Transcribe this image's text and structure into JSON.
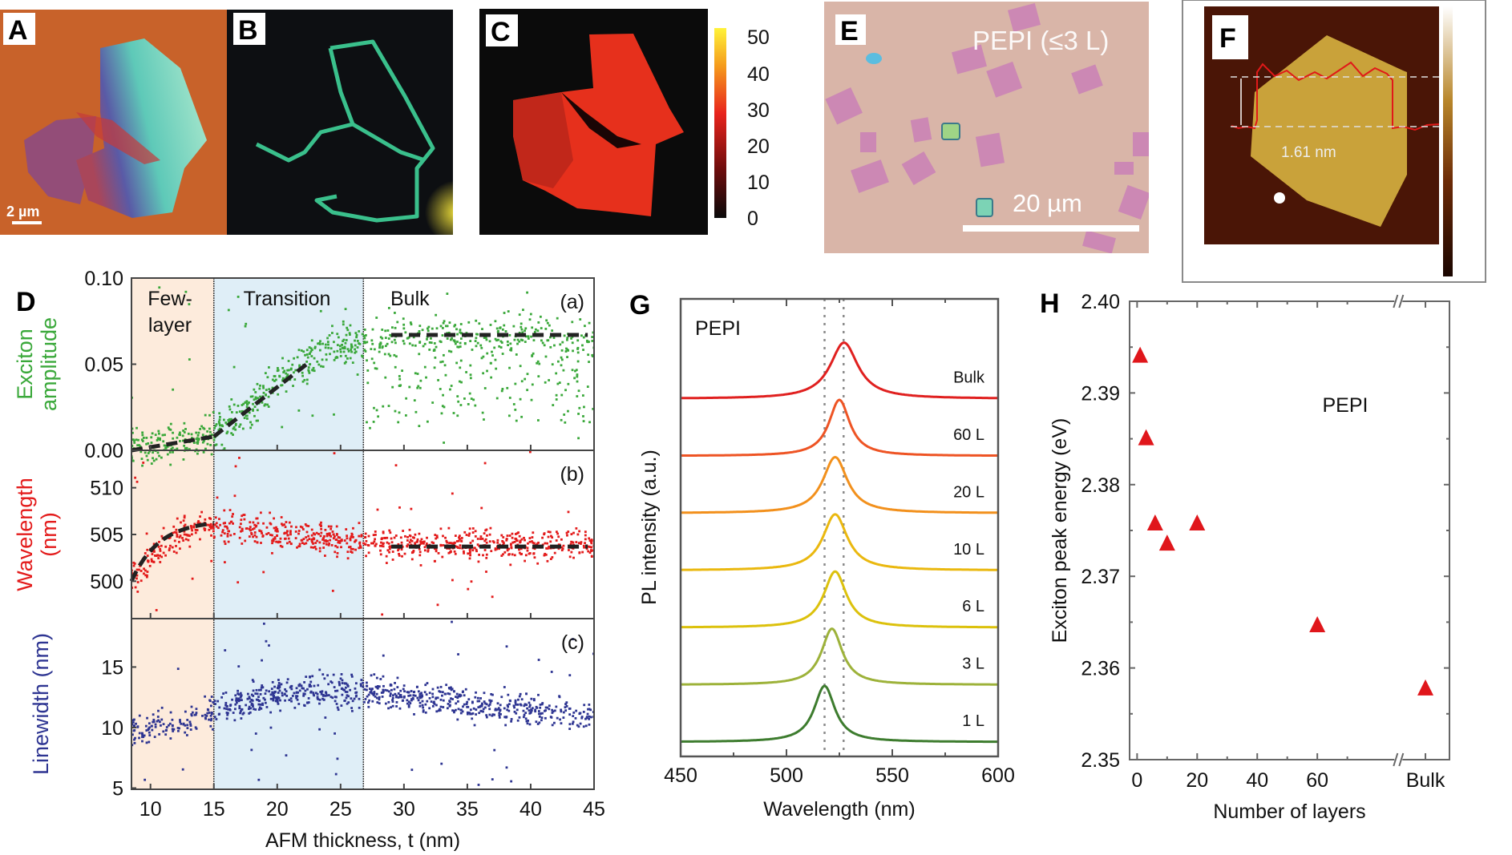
{
  "panels": {
    "A": {
      "letter": "A",
      "scale_bar": "2 µm",
      "colors": {
        "substrate": "#c8622a",
        "flake": "#9fe3c6",
        "thick": "#7a4a8c"
      }
    },
    "B": {
      "letter": "B",
      "colors": {
        "background": "#0d0f12",
        "edge": "#3fd49a",
        "glow": "#e4d64a"
      }
    },
    "C": {
      "letter": "C",
      "colorbar": {
        "ticks": [
          "50",
          "40",
          "30",
          "20",
          "10",
          "0"
        ],
        "colors": [
          "#fff33a",
          "#f59b1c",
          "#e8231c",
          "#7a0e0e",
          "#0a0a0a"
        ]
      }
    },
    "E": {
      "letter": "E",
      "label": "PEPI (≤3 L)",
      "scale_bar": "20 µm",
      "colors": {
        "substrate": "#d9b5a8",
        "flake": "#c879b8",
        "thick": "#7cd3b5"
      }
    },
    "F": {
      "letter": "F",
      "step_height": "1.61 nm",
      "colors": {
        "background": "#4a1506",
        "flake": "#c9a23a",
        "profile": "#e01919"
      }
    }
  },
  "chart_data": [
    {
      "id": "D",
      "type": "scatter",
      "panel_letter": "D",
      "title": "",
      "xlabel": "AFM thickness, t (nm)",
      "xlim": [
        8.5,
        45
      ],
      "xticks": [
        10,
        15,
        20,
        25,
        30,
        35,
        40,
        45
      ],
      "regions": [
        {
          "label_lines": [
            "Few-",
            "layer"
          ],
          "from": 8.5,
          "to": 15,
          "color": "#fdebdc"
        },
        {
          "label_lines": [
            "Transition"
          ],
          "from": 15,
          "to": 26.8,
          "color": "#dfeef7"
        },
        {
          "label_lines": [
            "Bulk"
          ],
          "from": 26.8,
          "to": 45,
          "color": "#ffffff"
        }
      ],
      "subplots": [
        {
          "tag": "(a)",
          "ylabel_lines": [
            "Exciton",
            "amplitude"
          ],
          "color": "#3aa83a",
          "ylim": [
            0.0,
            0.1
          ],
          "yticks": [
            "0.00",
            "0.05",
            "0.10"
          ],
          "ytick_values": [
            0.0,
            0.05,
            0.1
          ],
          "fit_segments": [
            {
              "x": [
                8.5,
                15
              ],
              "y": [
                0.0,
                0.008
              ]
            },
            {
              "x": [
                15,
                22.5
              ],
              "y": [
                0.008,
                0.051
              ]
            },
            {
              "x": [
                29,
                44.5
              ],
              "y": [
                0.067,
                0.067
              ]
            }
          ],
          "trend": [
            [
              9,
              0.002
            ],
            [
              11,
              0.004
            ],
            [
              13,
              0.006
            ],
            [
              15,
              0.009
            ],
            [
              17,
              0.02
            ],
            [
              19,
              0.033
            ],
            [
              21,
              0.045
            ],
            [
              23,
              0.055
            ],
            [
              25,
              0.06
            ],
            [
              27,
              0.062
            ],
            [
              30,
              0.066
            ],
            [
              35,
              0.067
            ],
            [
              40,
              0.066
            ],
            [
              45,
              0.066
            ]
          ],
          "spread": 0.008
        },
        {
          "tag": "(b)",
          "ylabel_lines": [
            "Wavelength",
            "(nm)"
          ],
          "color": "#e31b1b",
          "ylim": [
            496,
            514
          ],
          "yticks": [
            "500",
            "505",
            "510"
          ],
          "ytick_values": [
            500,
            505,
            510
          ],
          "fit_segments": [
            {
              "x": [
                8.5,
                15
              ],
              "y": [
                500,
                506.2
              ],
              "curve": true
            },
            {
              "x": [
                29,
                44.5
              ],
              "y": [
                503.7,
                503.7
              ]
            }
          ],
          "trend": [
            [
              9,
              500.5
            ],
            [
              11,
              504
            ],
            [
              13,
              505.5
            ],
            [
              15,
              506
            ],
            [
              17,
              505.6
            ],
            [
              20,
              505.1
            ],
            [
              23,
              504.7
            ],
            [
              26,
              504.2
            ],
            [
              30,
              504
            ],
            [
              35,
              503.9
            ],
            [
              40,
              503.8
            ],
            [
              45,
              503.8
            ]
          ],
          "spread": 1.1
        },
        {
          "tag": "(c)",
          "ylabel_lines": [
            "Linewidth (nm)"
          ],
          "color": "#2e3592",
          "ylim": [
            4.9,
            19
          ],
          "yticks": [
            "5",
            "10",
            "15"
          ],
          "ytick_values": [
            5,
            10,
            15
          ],
          "fit_segments": [],
          "trend": [
            [
              9,
              9.8
            ],
            [
              11,
              10
            ],
            [
              13,
              10.6
            ],
            [
              15,
              11.2
            ],
            [
              17,
              12
            ],
            [
              19,
              12.6
            ],
            [
              21,
              12.9
            ],
            [
              24,
              13
            ],
            [
              27,
              13
            ],
            [
              30,
              12.6
            ],
            [
              35,
              12
            ],
            [
              40,
              11.4
            ],
            [
              45,
              10.8
            ]
          ],
          "spread": 0.9
        }
      ]
    },
    {
      "id": "G",
      "type": "line",
      "panel_letter": "G",
      "title": "PEPI",
      "xlabel": "Wavelength (nm)",
      "ylabel": "PL intensity (a.u.)",
      "xlim": [
        450,
        600
      ],
      "xticks": [
        450,
        500,
        550,
        600
      ],
      "minor_xticks": [
        475,
        525,
        575
      ],
      "reference_lines_nm": [
        518,
        527
      ],
      "series": [
        {
          "name": "Bulk",
          "peak_nm": 527.2,
          "fwhm_nm": 16,
          "color": "#e0201f",
          "offset": 6
        },
        {
          "name": "60 L",
          "peak_nm": 525,
          "fwhm_nm": 12,
          "color": "#ee5424",
          "offset": 5
        },
        {
          "name": "20 L",
          "peak_nm": 523,
          "fwhm_nm": 14,
          "color": "#f2901c",
          "offset": 4
        },
        {
          "name": "10 L",
          "peak_nm": 523,
          "fwhm_nm": 14,
          "color": "#eab80f",
          "offset": 3
        },
        {
          "name": "6 L",
          "peak_nm": 523,
          "fwhm_nm": 13,
          "color": "#dcc10c",
          "offset": 2
        },
        {
          "name": "3 L",
          "peak_nm": 521.5,
          "fwhm_nm": 12,
          "color": "#9db23a",
          "offset": 1
        },
        {
          "name": "1 L",
          "peak_nm": 518,
          "fwhm_nm": 12,
          "color": "#3d7c2e",
          "offset": 0
        }
      ]
    },
    {
      "id": "H",
      "type": "scatter",
      "panel_letter": "H",
      "annotation": "PEPI",
      "xlabel": "Number of layers",
      "ylabel": "Exciton peak energy (eV)",
      "xlim": [
        -2.5,
        104
      ],
      "ylim": [
        2.35,
        2.4
      ],
      "xticks": [
        "0",
        "20",
        "40",
        "60",
        "Bulk"
      ],
      "xtick_values": [
        0,
        20,
        40,
        60,
        96
      ],
      "yticks": [
        "2.35",
        "2.36",
        "2.37",
        "2.38",
        "2.39",
        "2.40"
      ],
      "ytick_values": [
        2.35,
        2.36,
        2.37,
        2.38,
        2.39,
        2.4
      ],
      "axis_break_at": 87,
      "marker": "triangle",
      "color": "#e0161b",
      "points": [
        {
          "layers": "1",
          "x": 1,
          "energy": 2.394
        },
        {
          "layers": "3",
          "x": 3,
          "energy": 2.385
        },
        {
          "layers": "6",
          "x": 6,
          "energy": 2.3757
        },
        {
          "layers": "10",
          "x": 10,
          "energy": 2.3735
        },
        {
          "layers": "20",
          "x": 20,
          "energy": 2.3757
        },
        {
          "layers": "60",
          "x": 60,
          "energy": 2.3646
        },
        {
          "layers": "Bulk",
          "x": 96,
          "energy": 2.3577
        }
      ]
    }
  ]
}
